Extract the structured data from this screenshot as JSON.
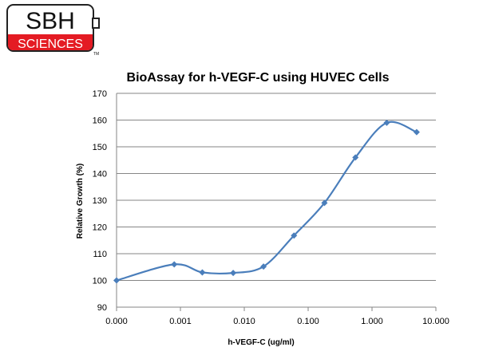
{
  "logo": {
    "line1": "SBH",
    "line2": "SCIENCES",
    "mark": "TM",
    "colors": {
      "red": "#e41b23",
      "border": "#222222"
    }
  },
  "chart_data": {
    "type": "line",
    "title": "BioAssay for h-VEGF-C using HUVEC Cells",
    "xlabel": "h-VEGF-C (ug/ml)",
    "ylabel": "Relative Growth (%)",
    "x_scale": "log",
    "x_ticks": [
      "0.000",
      "0.001",
      "0.010",
      "0.100",
      "1.000",
      "10.000"
    ],
    "y_ticks": [
      90,
      100,
      110,
      120,
      130,
      140,
      150,
      160,
      170
    ],
    "ylim": [
      90,
      170
    ],
    "grid": "horizontal",
    "legend": "none",
    "series": [
      {
        "color": "#4a7ebb",
        "marker": "diamond",
        "smooth": true,
        "points": [
          {
            "x": 0.0001,
            "y": 100
          },
          {
            "x": 0.0008,
            "y": 106
          },
          {
            "x": 0.0022,
            "y": 103
          },
          {
            "x": 0.0067,
            "y": 102.8
          },
          {
            "x": 0.02,
            "y": 105.2
          },
          {
            "x": 0.06,
            "y": 116.8
          },
          {
            "x": 0.18,
            "y": 129
          },
          {
            "x": 0.55,
            "y": 146
          },
          {
            "x": 1.7,
            "y": 159
          },
          {
            "x": 5.0,
            "y": 155.5
          }
        ]
      }
    ]
  }
}
